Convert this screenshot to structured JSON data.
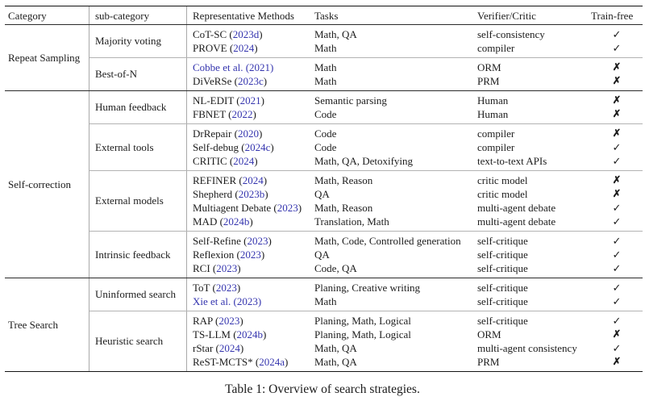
{
  "table": {
    "caption": "Table 1: Overview of search strategies.",
    "columns": [
      "Category",
      "sub-category",
      "Representative Methods",
      "Tasks",
      "Verifier/Critic",
      "Train-free"
    ],
    "marks": {
      "check": "✓",
      "cross": "✗"
    },
    "colors": {
      "citation_blue": "#3434ae",
      "rule_dark": "#2b2b2b",
      "rule_light": "#b3b3b3",
      "text": "#1c1c1c"
    },
    "categories": [
      {
        "label": "Repeat Sampling",
        "groups": [
          {
            "label": "Majority voting",
            "rows": [
              {
                "method": "CoT-SC",
                "year": "2023d",
                "cite_all": false,
                "tasks": "Math, QA",
                "verifier": "self-consistency",
                "train_free": true
              },
              {
                "method": "PROVE",
                "year": "2024",
                "cite_all": false,
                "tasks": "Math",
                "verifier": "compiler",
                "train_free": true
              }
            ]
          },
          {
            "label": "Best-of-N",
            "rows": [
              {
                "method": "Cobbe et al.",
                "year": "2021",
                "cite_all": true,
                "tasks": "Math",
                "verifier": "ORM",
                "train_free": false
              },
              {
                "method": "DiVeRSe",
                "year": "2023c",
                "cite_all": false,
                "tasks": "Math",
                "verifier": "PRM",
                "train_free": false
              }
            ]
          }
        ]
      },
      {
        "label": "Self-correction",
        "groups": [
          {
            "label": "Human feedback",
            "rows": [
              {
                "method": "NL-EDIT",
                "year": "2021",
                "cite_all": false,
                "tasks": "Semantic parsing",
                "verifier": "Human",
                "train_free": false
              },
              {
                "method": "FBNET",
                "year": "2022",
                "cite_all": false,
                "tasks": "Code",
                "verifier": "Human",
                "train_free": false
              }
            ]
          },
          {
            "label": "External tools",
            "rows": [
              {
                "method": "DrRepair",
                "year": "2020",
                "cite_all": false,
                "tasks": "Code",
                "verifier": "compiler",
                "train_free": false
              },
              {
                "method": "Self-debug",
                "year": "2024c",
                "cite_all": false,
                "tasks": "Code",
                "verifier": "compiler",
                "train_free": true
              },
              {
                "method": "CRITIC",
                "year": "2024",
                "cite_all": false,
                "tasks": "Math, QA, Detoxifying",
                "verifier": "text-to-text APIs",
                "train_free": true
              }
            ]
          },
          {
            "label": "External models",
            "rows": [
              {
                "method": "REFINER",
                "year": "2024",
                "cite_all": false,
                "tasks": "Math, Reason",
                "verifier": "critic model",
                "train_free": false
              },
              {
                "method": "Shepherd",
                "year": "2023b",
                "cite_all": false,
                "tasks": "QA",
                "verifier": "critic model",
                "train_free": false
              },
              {
                "method": "Multiagent Debate",
                "year": "2023",
                "cite_all": false,
                "tasks": "Math, Reason",
                "verifier": "multi-agent debate",
                "train_free": true
              },
              {
                "method": "MAD",
                "year": "2024b",
                "cite_all": false,
                "tasks": "Translation, Math",
                "verifier": "multi-agent debate",
                "train_free": true
              }
            ]
          },
          {
            "label": "Intrinsic feedback",
            "rows": [
              {
                "method": "Self-Refine",
                "year": "2023",
                "cite_all": false,
                "tasks": "Math, Code, Controlled generation",
                "verifier": "self-critique",
                "train_free": true
              },
              {
                "method": "Reflexion",
                "year": "2023",
                "cite_all": false,
                "tasks": "QA",
                "verifier": "self-critique",
                "train_free": true
              },
              {
                "method": "RCI",
                "year": "2023",
                "cite_all": false,
                "tasks": "Code, QA",
                "verifier": "self-critique",
                "train_free": true
              }
            ]
          }
        ]
      },
      {
        "label": "Tree Search",
        "groups": [
          {
            "label": "Uninformed search",
            "rows": [
              {
                "method": "ToT",
                "year": "2023",
                "cite_all": false,
                "tasks": "Planing, Creative writing",
                "verifier": "self-critique",
                "train_free": true
              },
              {
                "method": "Xie et al.",
                "year": "2023",
                "cite_all": true,
                "tasks": "Math",
                "verifier": "self-critique",
                "train_free": true
              }
            ]
          },
          {
            "label": "Heuristic search",
            "rows": [
              {
                "method": "RAP",
                "year": "2023",
                "cite_all": false,
                "tasks": "Planing, Math, Logical",
                "verifier": "self-critique",
                "train_free": true
              },
              {
                "method": "TS-LLM",
                "year": "2024b",
                "cite_all": false,
                "tasks": "Planing, Math, Logical",
                "verifier": "ORM",
                "train_free": false
              },
              {
                "method": "rStar",
                "year": "2024",
                "cite_all": false,
                "tasks": "Math, QA",
                "verifier": "multi-agent consistency",
                "train_free": true
              },
              {
                "method": "ReST-MCTS*",
                "year": "2024a",
                "cite_all": false,
                "tasks": "Math, QA",
                "verifier": "PRM",
                "train_free": false
              }
            ]
          }
        ]
      }
    ]
  }
}
